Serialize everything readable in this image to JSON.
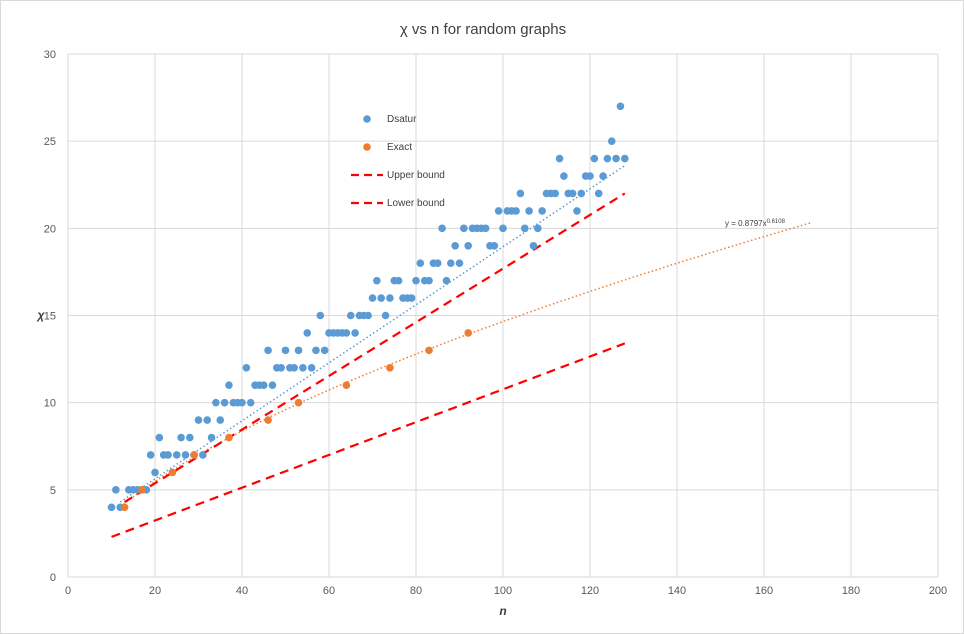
{
  "chart_data": {
    "type": "scatter",
    "title": "χ vs n for random graphs",
    "xlabel": "n",
    "ylabel": "χ",
    "xlim": [
      0,
      200
    ],
    "ylim": [
      0,
      30
    ],
    "x_ticks": [
      0,
      20,
      40,
      60,
      80,
      100,
      120,
      140,
      160,
      180,
      200
    ],
    "y_ticks": [
      0,
      5,
      10,
      15,
      20,
      25,
      30
    ],
    "grid": true,
    "legend_placement": "upper-left inside plot",
    "series": [
      {
        "name": "Dsatur",
        "kind": "scatter",
        "color": "#5B9BD5",
        "points": [
          [
            10,
            4
          ],
          [
            11,
            5
          ],
          [
            12,
            4
          ],
          [
            14,
            5
          ],
          [
            15,
            5
          ],
          [
            16,
            5
          ],
          [
            17,
            5
          ],
          [
            18,
            5
          ],
          [
            19,
            7
          ],
          [
            20,
            6
          ],
          [
            21,
            8
          ],
          [
            22,
            7
          ],
          [
            23,
            7
          ],
          [
            25,
            7
          ],
          [
            26,
            8
          ],
          [
            27,
            7
          ],
          [
            28,
            8
          ],
          [
            29,
            7
          ],
          [
            30,
            9
          ],
          [
            31,
            7
          ],
          [
            32,
            9
          ],
          [
            33,
            8
          ],
          [
            34,
            10
          ],
          [
            35,
            9
          ],
          [
            36,
            10
          ],
          [
            37,
            11
          ],
          [
            38,
            10
          ],
          [
            39,
            10
          ],
          [
            40,
            10
          ],
          [
            41,
            12
          ],
          [
            42,
            10
          ],
          [
            43,
            11
          ],
          [
            44,
            11
          ],
          [
            45,
            11
          ],
          [
            46,
            13
          ],
          [
            47,
            11
          ],
          [
            48,
            12
          ],
          [
            49,
            12
          ],
          [
            50,
            13
          ],
          [
            51,
            12
          ],
          [
            52,
            12
          ],
          [
            53,
            13
          ],
          [
            54,
            12
          ],
          [
            55,
            14
          ],
          [
            56,
            12
          ],
          [
            57,
            13
          ],
          [
            58,
            15
          ],
          [
            59,
            13
          ],
          [
            60,
            14
          ],
          [
            61,
            14
          ],
          [
            62,
            14
          ],
          [
            63,
            14
          ],
          [
            64,
            14
          ],
          [
            65,
            15
          ],
          [
            66,
            14
          ],
          [
            67,
            15
          ],
          [
            68,
            15
          ],
          [
            69,
            15
          ],
          [
            70,
            16
          ],
          [
            71,
            17
          ],
          [
            72,
            16
          ],
          [
            73,
            15
          ],
          [
            74,
            16
          ],
          [
            75,
            17
          ],
          [
            76,
            17
          ],
          [
            77,
            16
          ],
          [
            78,
            16
          ],
          [
            79,
            16
          ],
          [
            80,
            17
          ],
          [
            81,
            18
          ],
          [
            82,
            17
          ],
          [
            83,
            17
          ],
          [
            84,
            18
          ],
          [
            85,
            18
          ],
          [
            86,
            20
          ],
          [
            87,
            17
          ],
          [
            88,
            18
          ],
          [
            89,
            19
          ],
          [
            90,
            18
          ],
          [
            91,
            20
          ],
          [
            92,
            19
          ],
          [
            93,
            20
          ],
          [
            94,
            20
          ],
          [
            95,
            20
          ],
          [
            96,
            20
          ],
          [
            97,
            19
          ],
          [
            98,
            19
          ],
          [
            99,
            21
          ],
          [
            100,
            20
          ],
          [
            101,
            21
          ],
          [
            102,
            21
          ],
          [
            103,
            21
          ],
          [
            104,
            22
          ],
          [
            105,
            20
          ],
          [
            106,
            21
          ],
          [
            107,
            19
          ],
          [
            108,
            20
          ],
          [
            109,
            21
          ],
          [
            110,
            22
          ],
          [
            111,
            22
          ],
          [
            112,
            22
          ],
          [
            113,
            24
          ],
          [
            114,
            23
          ],
          [
            115,
            22
          ],
          [
            116,
            22
          ],
          [
            117,
            21
          ],
          [
            118,
            22
          ],
          [
            119,
            23
          ],
          [
            120,
            23
          ],
          [
            121,
            24
          ],
          [
            122,
            22
          ],
          [
            123,
            23
          ],
          [
            124,
            24
          ],
          [
            125,
            25
          ],
          [
            126,
            24
          ],
          [
            127,
            27
          ],
          [
            128,
            24
          ]
        ]
      },
      {
        "name": "Exact",
        "kind": "scatter",
        "color": "#ED7D31",
        "points": [
          [
            13,
            4
          ],
          [
            17,
            5
          ],
          [
            24,
            6
          ],
          [
            29,
            7
          ],
          [
            37,
            8
          ],
          [
            46,
            9
          ],
          [
            53,
            10
          ],
          [
            64,
            11
          ],
          [
            74,
            12
          ],
          [
            83,
            13
          ],
          [
            92,
            14
          ]
        ]
      },
      {
        "name": "Upper bound",
        "kind": "dashed-line",
        "color": "#FF0000",
        "points": [
          [
            13,
            4.3
          ],
          [
            128,
            22
          ]
        ]
      },
      {
        "name": "Lower bound",
        "kind": "dashed-line",
        "color": "#FF0000",
        "points": [
          [
            10,
            2.3
          ],
          [
            128,
            13.4
          ]
        ]
      }
    ],
    "trendlines": [
      {
        "of": "Dsatur",
        "style": "dotted",
        "color": "#5B9BD5",
        "points": [
          [
            12,
            4.3
          ],
          [
            128,
            23.6
          ]
        ]
      },
      {
        "of": "Exact",
        "style": "dotted",
        "color": "#ED7D31",
        "equation": "y = 0.8797x",
        "exponent": "0.6108",
        "a": 0.8797,
        "b": 0.6108,
        "x_range": [
          12,
          171
        ]
      }
    ]
  }
}
